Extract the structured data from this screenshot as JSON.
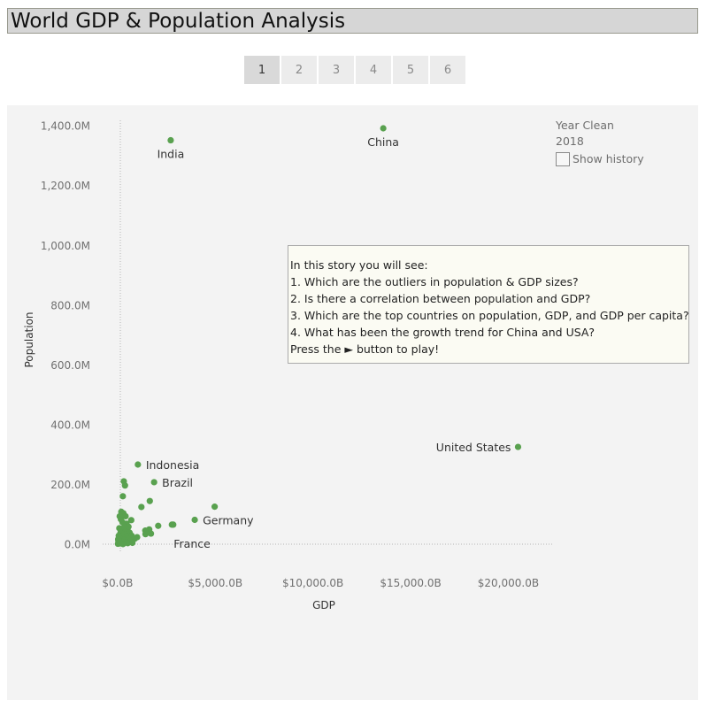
{
  "title": "World GDP & Population Analysis",
  "story_points": [
    "1",
    "2",
    "3",
    "4",
    "5",
    "6"
  ],
  "active_story_point": "1",
  "legend": {
    "label": "Year Clean",
    "value": "2018",
    "checkbox_label": "Show history"
  },
  "info_box": {
    "lines": [
      "In this story you will see:",
      "1. Which are the outliers in population & GDP sizes?",
      "2. Is there a correlation between population and GDP?",
      "3. Which are the top countries on population, GDP, and GDP per capita?",
      "4. What has been the growth trend for China and USA?",
      "Press the ► button to play!"
    ]
  },
  "colors": {
    "point": "#59a14f",
    "panel_bg": "#f3f3f3",
    "title_bg": "#d6d6d6"
  },
  "chart_data": {
    "type": "scatter",
    "xlabel": "GDP",
    "ylabel": "Population",
    "xlim": [
      -900,
      22200
    ],
    "ylim": [
      -105,
      1470
    ],
    "xticks": [
      {
        "value": 0,
        "label": "$0.0B"
      },
      {
        "value": 5000,
        "label": "$5,000.0B"
      },
      {
        "value": 10000,
        "label": "$10,000.0B"
      },
      {
        "value": 15000,
        "label": "$15,000.0B"
      },
      {
        "value": 20000,
        "label": "$20,000.0B"
      }
    ],
    "yticks": [
      {
        "value": 0,
        "label": "0.0M"
      },
      {
        "value": 200,
        "label": "200.0M"
      },
      {
        "value": 400,
        "label": "400.0M"
      },
      {
        "value": 600,
        "label": "600.0M"
      },
      {
        "value": 800,
        "label": "800.0M"
      },
      {
        "value": 1000,
        "label": "1,000.0M"
      },
      {
        "value": 1200,
        "label": "1,200.0M"
      },
      {
        "value": 1400,
        "label": "1,400.0M"
      }
    ],
    "points": [
      {
        "name": "China",
        "x": 13600,
        "y": 1393,
        "label": true,
        "label_pos": "below"
      },
      {
        "name": "India",
        "x": 2720,
        "y": 1353,
        "label": true,
        "label_pos": "below"
      },
      {
        "name": "United States",
        "x": 20500,
        "y": 327,
        "label": true,
        "label_pos": "left"
      },
      {
        "name": "Indonesia",
        "x": 1040,
        "y": 268,
        "label": true,
        "label_pos": "right"
      },
      {
        "name": "Brazil",
        "x": 1870,
        "y": 209,
        "label": true,
        "label_pos": "right"
      },
      {
        "name": "Germany",
        "x": 3950,
        "y": 83,
        "label": true,
        "label_pos": "right"
      },
      {
        "name": "France",
        "x": 2780,
        "y": 67,
        "label": true,
        "label_pos": "below-right"
      },
      {
        "name": "",
        "x": 4970,
        "y": 127
      },
      {
        "name": "",
        "x": 2850,
        "y": 67
      },
      {
        "name": "",
        "x": 2080,
        "y": 63
      },
      {
        "name": "",
        "x": 1650,
        "y": 146
      },
      {
        "name": "",
        "x": 1220,
        "y": 126
      },
      {
        "name": "",
        "x": 1710,
        "y": 37
      },
      {
        "name": "",
        "x": 1620,
        "y": 51
      },
      {
        "name": "",
        "x": 1420,
        "y": 47
      },
      {
        "name": "",
        "x": 1430,
        "y": 35
      },
      {
        "name": "",
        "x": 1000,
        "y": 25
      },
      {
        "name": "",
        "x": 320,
        "y": 212
      },
      {
        "name": "",
        "x": 380,
        "y": 198
      },
      {
        "name": "",
        "x": 270,
        "y": 162
      },
      {
        "name": "",
        "x": 190,
        "y": 110
      },
      {
        "name": "",
        "x": 300,
        "y": 105
      },
      {
        "name": "",
        "x": 410,
        "y": 95
      },
      {
        "name": "",
        "x": 700,
        "y": 82
      },
      {
        "name": "",
        "x": 170,
        "y": 85
      },
      {
        "name": "",
        "x": 460,
        "y": 70
      },
      {
        "name": "",
        "x": 90,
        "y": 55
      },
      {
        "name": "",
        "x": 250,
        "y": 50
      },
      {
        "name": "",
        "x": 530,
        "y": 45
      },
      {
        "name": "",
        "x": 620,
        "y": 40
      },
      {
        "name": "",
        "x": 150,
        "y": 40
      },
      {
        "name": "",
        "x": 360,
        "y": 35
      },
      {
        "name": "",
        "x": 720,
        "y": 30
      },
      {
        "name": "",
        "x": 60,
        "y": 30
      },
      {
        "name": "",
        "x": 430,
        "y": 28
      },
      {
        "name": "",
        "x": 240,
        "y": 25
      },
      {
        "name": "",
        "x": 880,
        "y": 20
      },
      {
        "name": "",
        "x": 120,
        "y": 20
      },
      {
        "name": "",
        "x": 560,
        "y": 18
      },
      {
        "name": "",
        "x": 320,
        "y": 15
      },
      {
        "name": "",
        "x": 40,
        "y": 12
      },
      {
        "name": "",
        "x": 650,
        "y": 12
      },
      {
        "name": "",
        "x": 190,
        "y": 10
      },
      {
        "name": "",
        "x": 420,
        "y": 8
      },
      {
        "name": "",
        "x": 80,
        "y": 6
      },
      {
        "name": "",
        "x": 520,
        "y": 5
      },
      {
        "name": "",
        "x": 20,
        "y": 3
      },
      {
        "name": "",
        "x": 280,
        "y": 2
      },
      {
        "name": "",
        "x": 140,
        "y": 4
      },
      {
        "name": "",
        "x": 760,
        "y": 6
      },
      {
        "name": "",
        "x": 30,
        "y": 18
      },
      {
        "name": "",
        "x": 350,
        "y": 60
      },
      {
        "name": "",
        "x": 110,
        "y": 95
      },
      {
        "name": "",
        "x": 560,
        "y": 60
      },
      {
        "name": "",
        "x": 250,
        "y": 75
      }
    ]
  }
}
